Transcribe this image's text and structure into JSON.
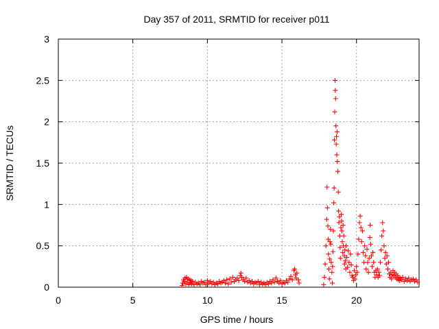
{
  "chart_data": {
    "type": "scatter",
    "title": "Day 357 of 2011, SRMTID for receiver p011",
    "xlabel": "GPS time / hours",
    "ylabel": "SRMTID / TECUs",
    "xlim": [
      0,
      24.2
    ],
    "ylim": [
      0,
      3
    ],
    "xticks": [
      "0",
      "5",
      "10",
      "15",
      "20"
    ],
    "xtick_values": [
      0,
      5,
      10,
      15,
      20
    ],
    "yticks": [
      "0",
      "0.5",
      "1",
      "1.5",
      "2",
      "2.5",
      "3"
    ],
    "ytick_values": [
      0,
      0.5,
      1,
      1.5,
      2,
      2.5,
      3
    ],
    "grid": true,
    "marker": "+",
    "series_color": "#ff0000",
    "series": [
      {
        "points": [
          [
            8.3,
            0.02
          ],
          [
            8.35,
            0.05
          ],
          [
            8.4,
            0.09
          ],
          [
            8.45,
            0.07
          ],
          [
            8.5,
            0.11
          ],
          [
            8.55,
            0.04
          ],
          [
            8.6,
            0.12
          ],
          [
            8.65,
            0.06
          ],
          [
            8.7,
            0.1
          ],
          [
            8.75,
            0.03
          ],
          [
            8.8,
            0.09
          ],
          [
            8.85,
            0.05
          ],
          [
            8.9,
            0.08
          ],
          [
            8.95,
            0.04
          ],
          [
            9.0,
            0.07
          ],
          [
            9.1,
            0.03
          ],
          [
            9.2,
            0.06
          ],
          [
            9.3,
            0.04
          ],
          [
            9.4,
            0.05
          ],
          [
            9.5,
            0.03
          ],
          [
            9.6,
            0.07
          ],
          [
            9.7,
            0.05
          ],
          [
            9.8,
            0.06
          ],
          [
            9.9,
            0.03
          ],
          [
            10.0,
            0.08
          ],
          [
            10.1,
            0.05
          ],
          [
            10.2,
            0.07
          ],
          [
            10.3,
            0.04
          ],
          [
            10.4,
            0.06
          ],
          [
            10.5,
            0.03
          ],
          [
            10.6,
            0.05
          ],
          [
            10.7,
            0.04
          ],
          [
            10.8,
            0.07
          ],
          [
            10.9,
            0.05
          ],
          [
            11.0,
            0.06
          ],
          [
            11.1,
            0.08
          ],
          [
            11.2,
            0.05
          ],
          [
            11.3,
            0.09
          ],
          [
            11.4,
            0.04
          ],
          [
            11.5,
            0.1
          ],
          [
            11.6,
            0.06
          ],
          [
            11.7,
            0.12
          ],
          [
            11.8,
            0.07
          ],
          [
            11.9,
            0.09
          ],
          [
            12.0,
            0.11
          ],
          [
            12.1,
            0.08
          ],
          [
            12.2,
            0.14
          ],
          [
            12.25,
            0.17
          ],
          [
            12.3,
            0.12
          ],
          [
            12.4,
            0.09
          ],
          [
            12.5,
            0.07
          ],
          [
            12.6,
            0.11
          ],
          [
            12.7,
            0.06
          ],
          [
            12.8,
            0.08
          ],
          [
            12.9,
            0.05
          ],
          [
            13.0,
            0.07
          ],
          [
            13.1,
            0.04
          ],
          [
            13.2,
            0.06
          ],
          [
            13.3,
            0.05
          ],
          [
            13.4,
            0.07
          ],
          [
            13.5,
            0.03
          ],
          [
            13.6,
            0.06
          ],
          [
            13.7,
            0.04
          ],
          [
            13.8,
            0.05
          ],
          [
            13.9,
            0.03
          ],
          [
            14.0,
            0.06
          ],
          [
            14.1,
            0.04
          ],
          [
            14.2,
            0.07
          ],
          [
            14.3,
            0.05
          ],
          [
            14.4,
            0.09
          ],
          [
            14.5,
            0.06
          ],
          [
            14.6,
            0.11
          ],
          [
            14.7,
            0.07
          ],
          [
            14.8,
            0.05
          ],
          [
            14.9,
            0.08
          ],
          [
            15.0,
            0.04
          ],
          [
            15.1,
            0.06
          ],
          [
            15.2,
            0.05
          ],
          [
            15.3,
            0.08
          ],
          [
            15.4,
            0.06
          ],
          [
            15.5,
            0.1
          ],
          [
            15.6,
            0.13
          ],
          [
            15.7,
            0.09
          ],
          [
            15.8,
            0.2
          ],
          [
            15.85,
            0.22
          ],
          [
            15.9,
            0.15
          ],
          [
            15.95,
            0.11
          ],
          [
            16.0,
            0.17
          ],
          [
            16.1,
            0.09
          ],
          [
            16.15,
            0.05
          ],
          [
            17.8,
            0.03
          ],
          [
            17.85,
            0.12
          ],
          [
            17.9,
            0.28
          ],
          [
            17.95,
            0.5
          ],
          [
            18.0,
            0.82
          ],
          [
            18.02,
            1.21
          ],
          [
            18.05,
            0.96
          ],
          [
            18.08,
            0.74
          ],
          [
            18.1,
            0.58
          ],
          [
            18.12,
            0.4
          ],
          [
            18.15,
            0.22
          ],
          [
            18.18,
            0.1
          ],
          [
            18.2,
            0.34
          ],
          [
            18.22,
            0.55
          ],
          [
            18.25,
            0.7
          ],
          [
            18.28,
            0.52
          ],
          [
            18.3,
            0.3
          ],
          [
            18.35,
            0.18
          ],
          [
            18.38,
            0.05
          ],
          [
            18.4,
            0.25
          ],
          [
            18.42,
            0.43
          ],
          [
            18.45,
            0.68
          ],
          [
            18.48,
            1.02
          ],
          [
            18.5,
            1.2
          ],
          [
            18.52,
            1.78
          ],
          [
            18.54,
            2.12
          ],
          [
            18.56,
            2.5
          ],
          [
            18.58,
            2.38
          ],
          [
            18.6,
            2.28
          ],
          [
            18.62,
            1.95
          ],
          [
            18.64,
            1.73
          ],
          [
            18.66,
            1.82
          ],
          [
            18.68,
            1.6
          ],
          [
            18.7,
            1.88
          ],
          [
            18.72,
            1.52
          ],
          [
            18.75,
            1.4
          ],
          [
            18.78,
            1.15
          ],
          [
            18.8,
            0.92
          ],
          [
            18.82,
            0.78
          ],
          [
            18.85,
            0.85
          ],
          [
            18.88,
            0.62
          ],
          [
            18.9,
            0.48
          ],
          [
            18.92,
            0.35
          ],
          [
            18.95,
            0.72
          ],
          [
            18.98,
            0.88
          ],
          [
            19.0,
            0.8
          ],
          [
            19.02,
            0.68
          ],
          [
            19.05,
            0.55
          ],
          [
            19.08,
            0.42
          ],
          [
            19.1,
            0.75
          ],
          [
            19.12,
            0.5
          ],
          [
            19.15,
            0.62
          ],
          [
            19.18,
            0.38
          ],
          [
            19.2,
            0.28
          ],
          [
            19.22,
            0.45
          ],
          [
            19.25,
            0.32
          ],
          [
            19.28,
            0.22
          ],
          [
            19.3,
            0.5
          ],
          [
            19.35,
            0.36
          ],
          [
            19.4,
            0.24
          ],
          [
            19.45,
            0.44
          ],
          [
            19.5,
            0.3
          ],
          [
            19.55,
            0.18
          ],
          [
            19.6,
            0.4
          ],
          [
            19.65,
            0.27
          ],
          [
            19.7,
            0.14
          ],
          [
            19.75,
            0.12
          ],
          [
            19.8,
            0.08
          ],
          [
            19.85,
            0.2
          ],
          [
            19.9,
            0.1
          ],
          [
            19.95,
            0.15
          ],
          [
            20.0,
            0.25
          ],
          [
            20.05,
            0.18
          ],
          [
            20.1,
            0.4
          ],
          [
            20.15,
            0.58
          ],
          [
            20.2,
            0.78
          ],
          [
            20.25,
            0.86
          ],
          [
            20.3,
            0.72
          ],
          [
            20.35,
            0.55
          ],
          [
            20.4,
            0.68
          ],
          [
            20.45,
            0.42
          ],
          [
            20.5,
            0.3
          ],
          [
            20.55,
            0.5
          ],
          [
            20.6,
            0.38
          ],
          [
            20.65,
            0.22
          ],
          [
            20.7,
            0.46
          ],
          [
            20.75,
            0.3
          ],
          [
            20.8,
            0.18
          ],
          [
            20.85,
            0.35
          ],
          [
            20.9,
            0.6
          ],
          [
            20.92,
            0.75
          ],
          [
            20.95,
            0.52
          ],
          [
            21.0,
            0.38
          ],
          [
            21.05,
            0.25
          ],
          [
            21.1,
            0.42
          ],
          [
            21.15,
            0.3
          ],
          [
            21.2,
            0.18
          ],
          [
            21.25,
            0.12
          ],
          [
            21.3,
            0.2
          ],
          [
            21.35,
            0.15
          ],
          [
            21.4,
            0.22
          ],
          [
            21.45,
            0.12
          ],
          [
            21.5,
            0.18
          ],
          [
            21.55,
            0.14
          ],
          [
            21.6,
            0.3
          ],
          [
            21.65,
            0.45
          ],
          [
            21.7,
            0.62
          ],
          [
            21.75,
            0.78
          ],
          [
            21.8,
            0.68
          ],
          [
            21.85,
            0.5
          ],
          [
            21.9,
            0.35
          ],
          [
            21.95,
            0.42
          ],
          [
            22.0,
            0.28
          ],
          [
            22.05,
            0.38
          ],
          [
            22.1,
            0.22
          ],
          [
            22.15,
            0.3
          ],
          [
            22.2,
            0.16
          ],
          [
            22.25,
            0.12
          ],
          [
            22.3,
            0.18
          ],
          [
            22.35,
            0.1
          ],
          [
            22.4,
            0.15
          ],
          [
            22.45,
            0.2
          ],
          [
            22.5,
            0.14
          ],
          [
            22.55,
            0.18
          ],
          [
            22.6,
            0.12
          ],
          [
            22.65,
            0.16
          ],
          [
            22.7,
            0.1
          ],
          [
            22.75,
            0.14
          ],
          [
            22.8,
            0.09
          ],
          [
            22.85,
            0.12
          ],
          [
            22.9,
            0.08
          ],
          [
            22.95,
            0.11
          ],
          [
            23.0,
            0.09
          ],
          [
            23.1,
            0.12
          ],
          [
            23.2,
            0.07
          ],
          [
            23.3,
            0.1
          ],
          [
            23.4,
            0.08
          ],
          [
            23.5,
            0.11
          ],
          [
            23.6,
            0.07
          ],
          [
            23.7,
            0.09
          ],
          [
            23.8,
            0.1
          ],
          [
            23.9,
            0.07
          ],
          [
            24.0,
            0.09
          ],
          [
            24.1,
            0.06
          ]
        ]
      }
    ]
  }
}
